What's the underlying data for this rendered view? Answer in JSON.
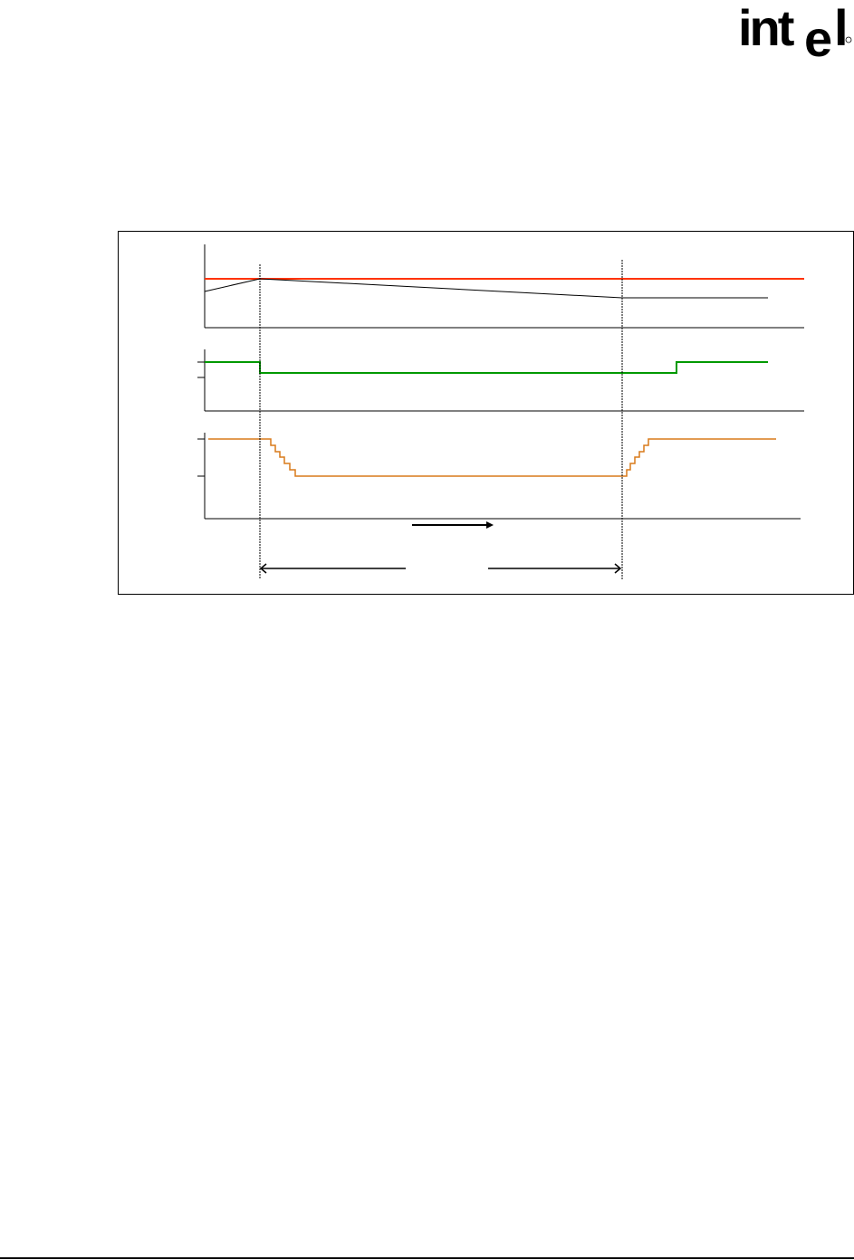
{
  "header": {
    "logo": {
      "text": "intel",
      "mark": "registered-circle"
    }
  },
  "figure": {
    "type": "timing-diagram",
    "panels": [
      {
        "name": "top",
        "traces": [
          {
            "color": "#ff3300",
            "shape": "constant-high"
          },
          {
            "color": "#000000",
            "shape": "rise-then-slow-decay"
          }
        ]
      },
      {
        "name": "middle",
        "traces": [
          {
            "color": "#009900",
            "shape": "high-low-high"
          }
        ]
      },
      {
        "name": "bottom",
        "traces": [
          {
            "color": "#d97a1a",
            "shape": "stepped-down-then-stepped-up"
          }
        ]
      }
    ],
    "colors": {
      "red": "#ff3300",
      "green": "#009900",
      "orange": "#d97a1a",
      "axis": "#000000"
    }
  }
}
